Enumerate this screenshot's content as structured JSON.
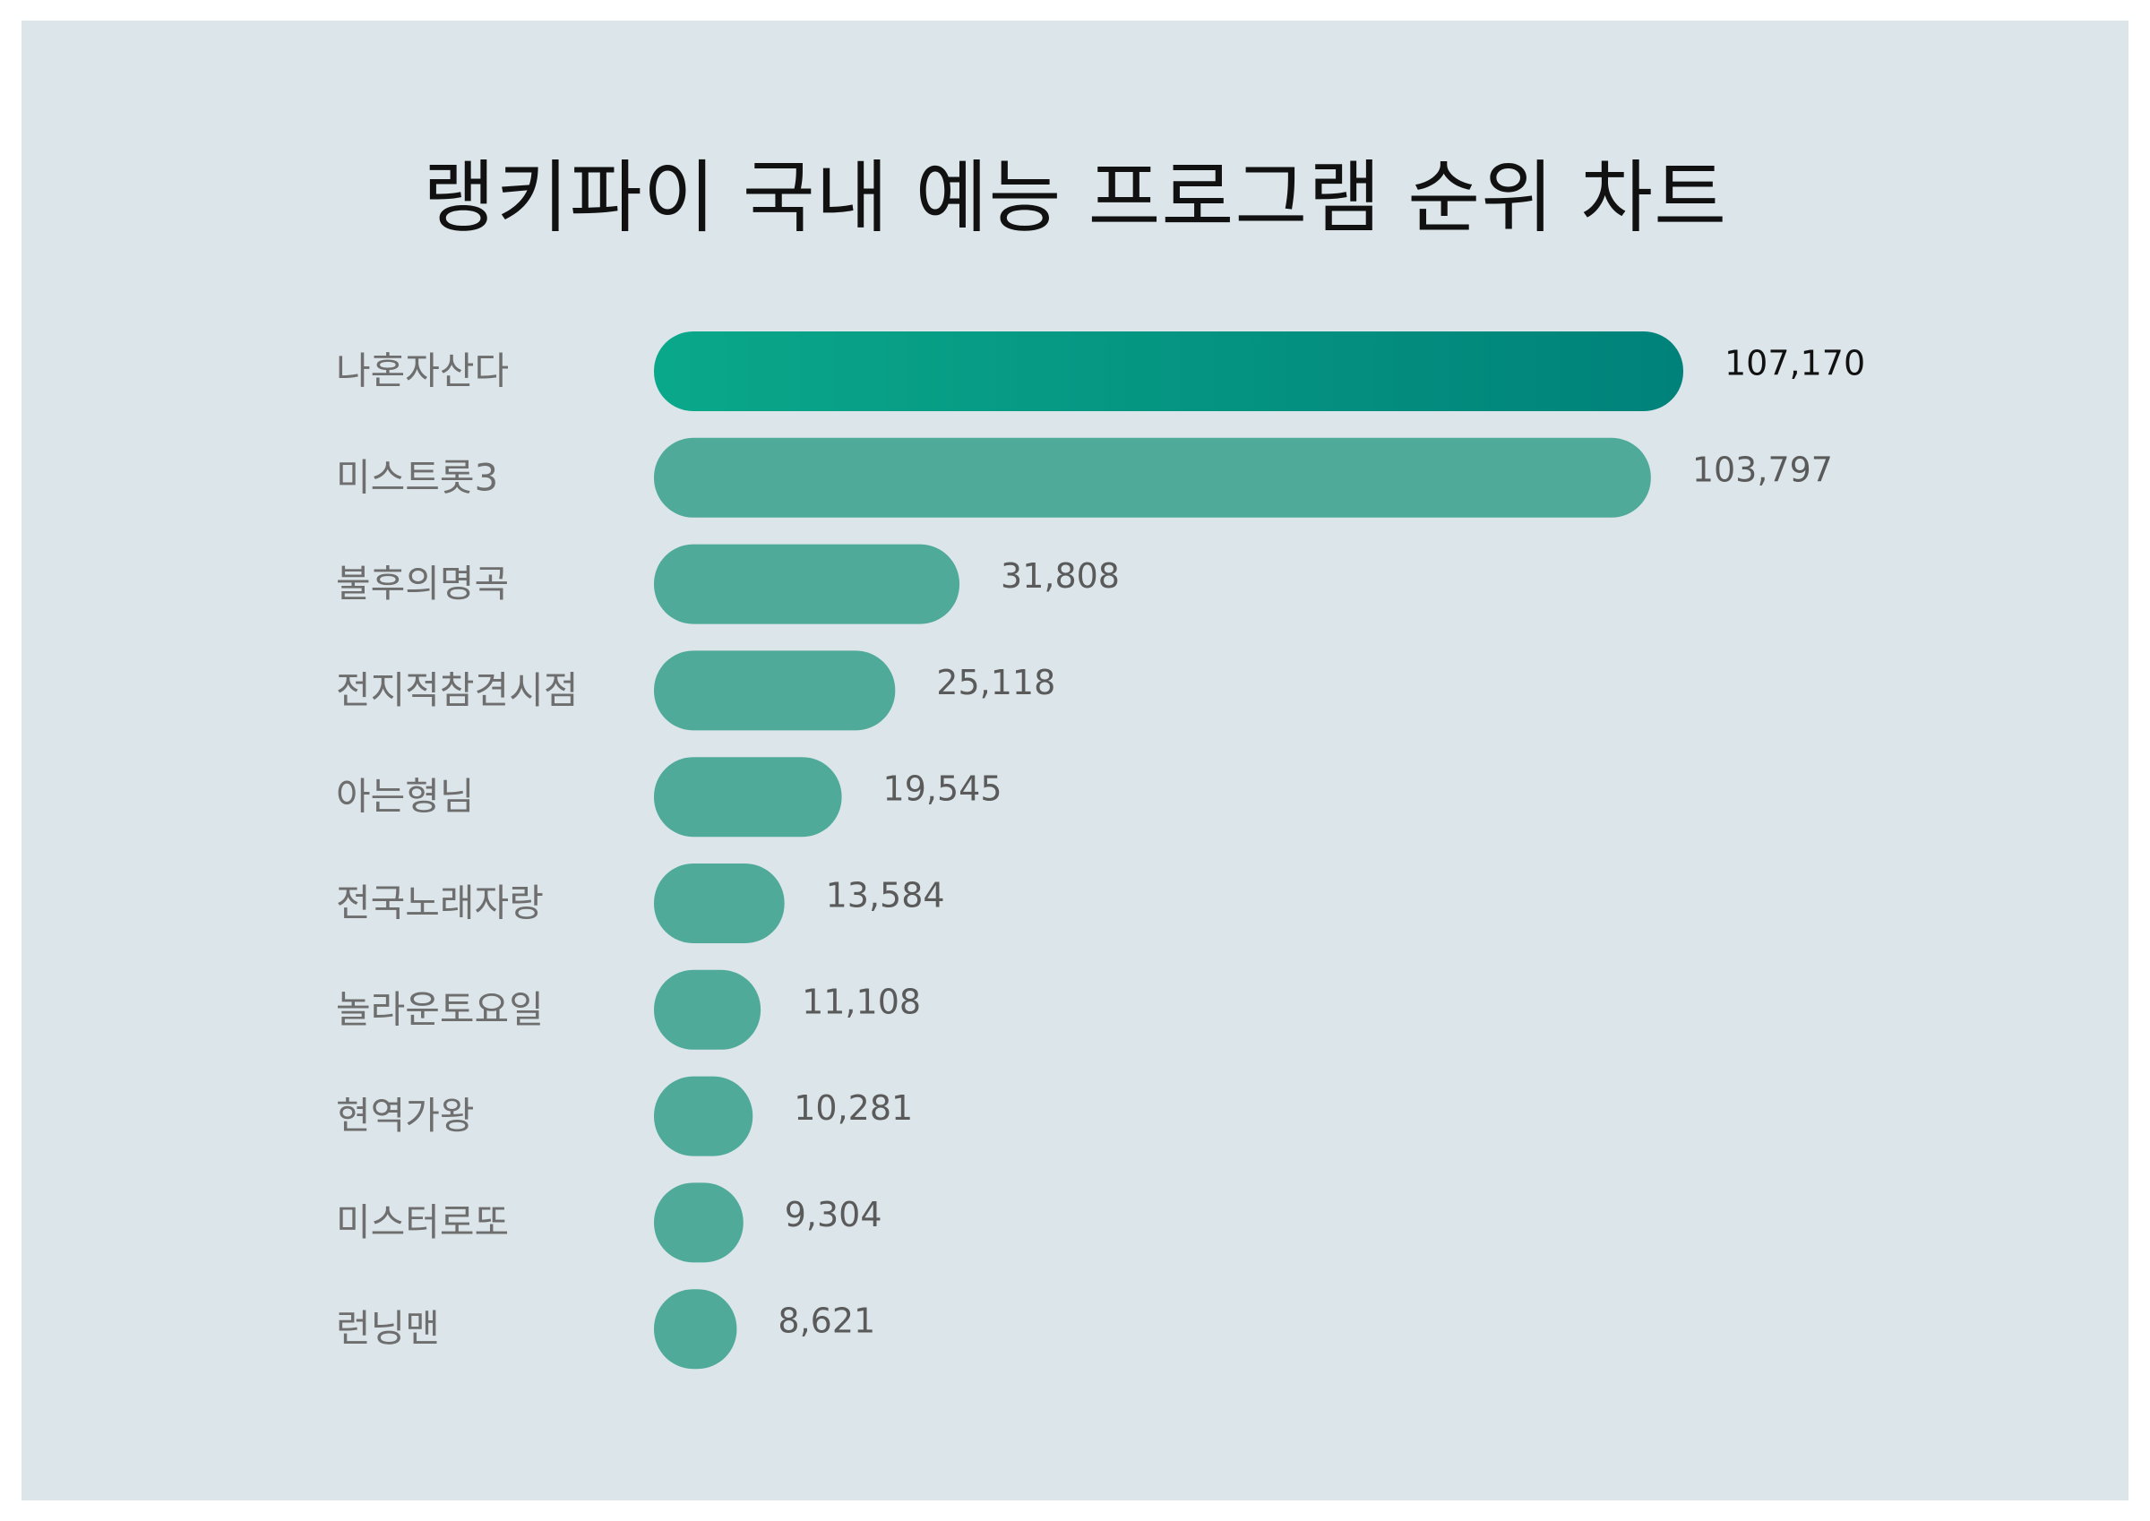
{
  "chart_data": {
    "type": "bar",
    "orientation": "horizontal",
    "title": "랭키파이 국내 예능 프로그램 순위 차트",
    "categories": [
      "나혼자산다",
      "미스트롯3",
      "불후의명곡",
      "전지적참견시점",
      "아는형님",
      "전국노래자랑",
      "놀라운토요일",
      "현역가왕",
      "미스터로또",
      "런닝맨"
    ],
    "values": [
      107170,
      103797,
      31808,
      25118,
      19545,
      13584,
      11108,
      10281,
      9304,
      8621
    ],
    "value_labels": [
      "107,170",
      "103,797",
      "31,808",
      "25,118",
      "19,545",
      "13,584",
      "11,108",
      "10,281",
      "9,304",
      "8,621"
    ],
    "xlim": [
      0,
      107170
    ],
    "grid": false,
    "legend": "none"
  },
  "colors": {
    "background": "#dce6ea",
    "bar": "#50aa99",
    "top_bar_start": "#0aa88a",
    "top_bar_end": "#00827a",
    "category_text": "#6e6e6e",
    "value_text": "#5a5a5a",
    "top_value_text": "#111111"
  }
}
